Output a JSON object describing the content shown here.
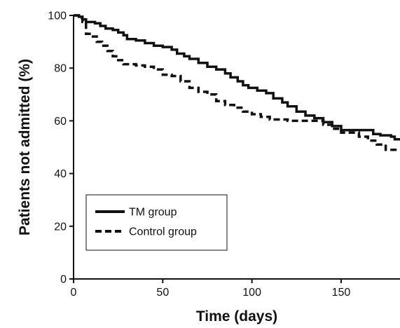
{
  "chart_data": {
    "type": "line",
    "title": "",
    "xlabel": "Time (days)",
    "ylabel": "Patients not admitted (%)",
    "xlim": [
      0,
      183
    ],
    "ylim": [
      0,
      100
    ],
    "x_ticks": [
      0,
      50,
      100,
      150
    ],
    "y_ticks": [
      0,
      20,
      40,
      60,
      80,
      100
    ],
    "grid": false,
    "legend_position": "lower-left",
    "series": [
      {
        "name": "TM group",
        "line_style": "solid",
        "color": "#111111",
        "step_points": [
          [
            0,
            100
          ],
          [
            3,
            99.5
          ],
          [
            5,
            98.5
          ],
          [
            7,
            97.5
          ],
          [
            12,
            97
          ],
          [
            15,
            96
          ],
          [
            18,
            95
          ],
          [
            22,
            94.5
          ],
          [
            25,
            93.5
          ],
          [
            28,
            92.5
          ],
          [
            30,
            91
          ],
          [
            35,
            90.5
          ],
          [
            40,
            89.5
          ],
          [
            45,
            88.5
          ],
          [
            50,
            88
          ],
          [
            55,
            87
          ],
          [
            58,
            85.5
          ],
          [
            62,
            84.5
          ],
          [
            65,
            83.5
          ],
          [
            70,
            82
          ],
          [
            75,
            80.5
          ],
          [
            80,
            79.5
          ],
          [
            85,
            78
          ],
          [
            88,
            76.5
          ],
          [
            92,
            75
          ],
          [
            95,
            73.5
          ],
          [
            98,
            72.5
          ],
          [
            103,
            71.5
          ],
          [
            108,
            70.5
          ],
          [
            112,
            68.5
          ],
          [
            117,
            67
          ],
          [
            120,
            65.5
          ],
          [
            125,
            63.5
          ],
          [
            130,
            62
          ],
          [
            135,
            61
          ],
          [
            140,
            59.5
          ],
          [
            145,
            58
          ],
          [
            150,
            56.5
          ],
          [
            155,
            56.5
          ],
          [
            160,
            56.5
          ],
          [
            165,
            56.5
          ],
          [
            168,
            55
          ],
          [
            172,
            54.5
          ],
          [
            178,
            54
          ],
          [
            180,
            53
          ],
          [
            183,
            53
          ]
        ]
      },
      {
        "name": "Control group",
        "line_style": "dashed",
        "color": "#111111",
        "step_points": [
          [
            0,
            100
          ],
          [
            3,
            99
          ],
          [
            5,
            97.5
          ],
          [
            7,
            93
          ],
          [
            10,
            92
          ],
          [
            13,
            90
          ],
          [
            16,
            88.5
          ],
          [
            19,
            86.5
          ],
          [
            22,
            84.5
          ],
          [
            25,
            83
          ],
          [
            28,
            81.5
          ],
          [
            35,
            81
          ],
          [
            40,
            80.5
          ],
          [
            45,
            79.5
          ],
          [
            50,
            77.5
          ],
          [
            55,
            77
          ],
          [
            60,
            75
          ],
          [
            65,
            72.5
          ],
          [
            70,
            71
          ],
          [
            75,
            70
          ],
          [
            80,
            67.5
          ],
          [
            85,
            66
          ],
          [
            90,
            65
          ],
          [
            95,
            63.5
          ],
          [
            100,
            62.5
          ],
          [
            105,
            61.5
          ],
          [
            110,
            60.5
          ],
          [
            120,
            60
          ],
          [
            130,
            60
          ],
          [
            135,
            60
          ],
          [
            140,
            58.5
          ],
          [
            145,
            57
          ],
          [
            150,
            55.5
          ],
          [
            155,
            55.5
          ],
          [
            160,
            54
          ],
          [
            165,
            52.5
          ],
          [
            170,
            51
          ],
          [
            175,
            49
          ],
          [
            183,
            49
          ]
        ]
      }
    ]
  }
}
